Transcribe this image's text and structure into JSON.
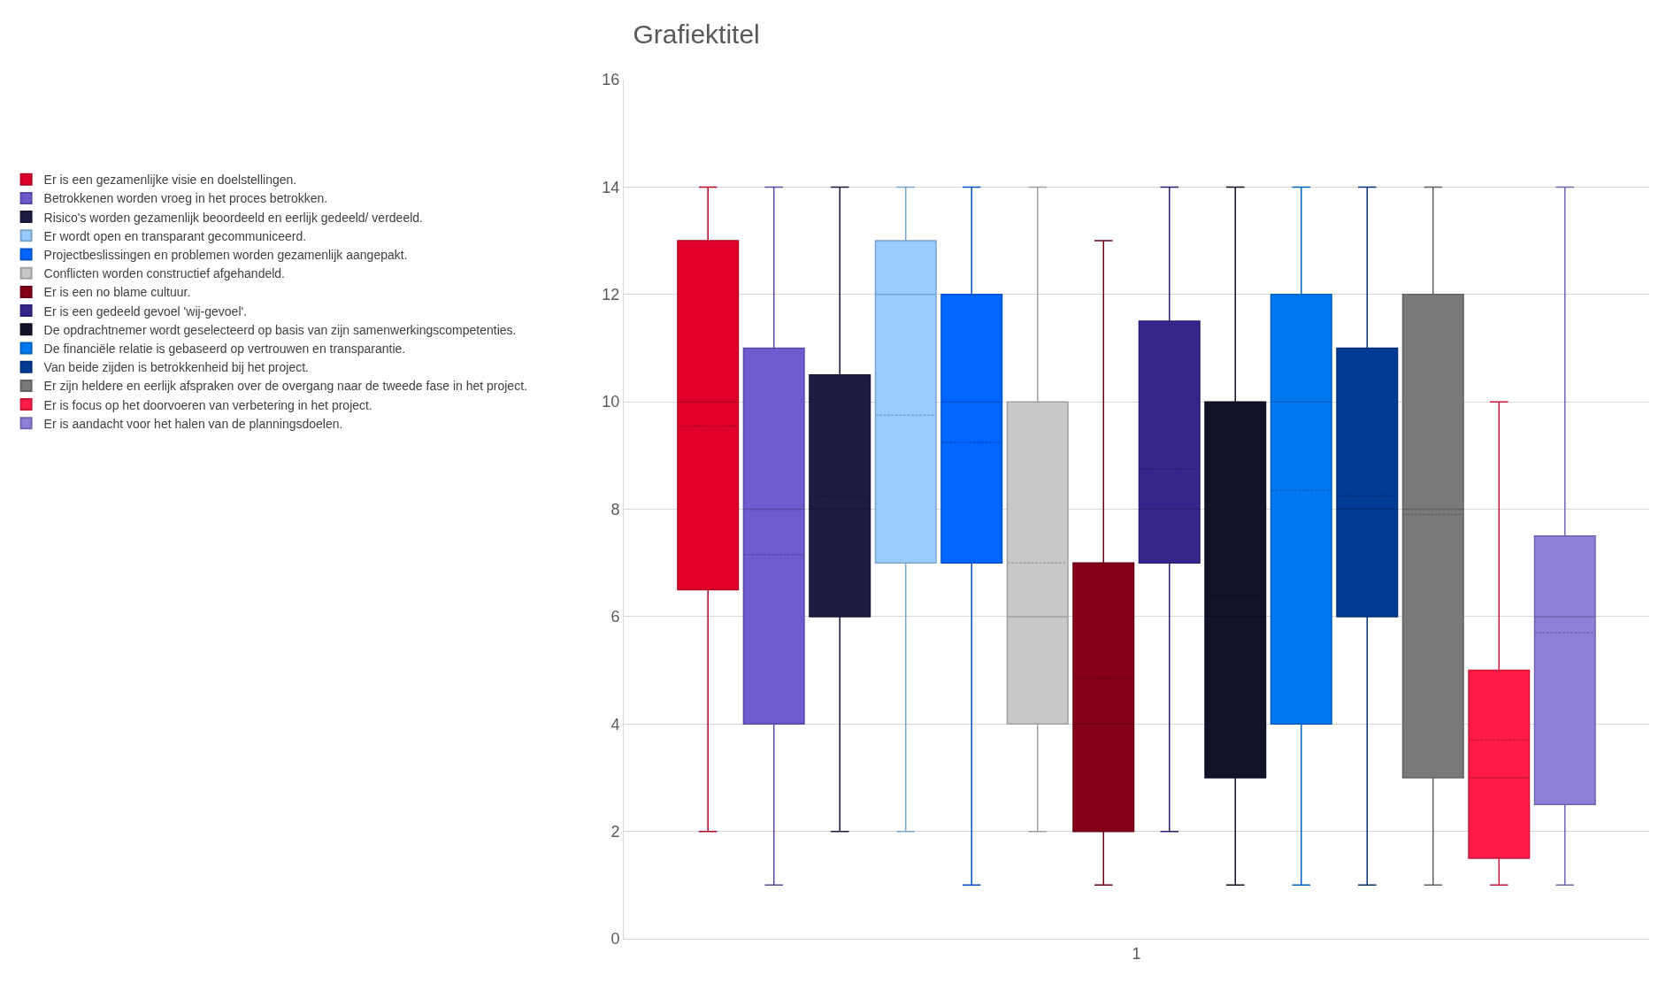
{
  "chart_data": {
    "type": "box",
    "title": "Grafiektitel",
    "categories": [
      "1"
    ],
    "ylim": [
      0,
      16
    ],
    "yticks": [
      0,
      2,
      4,
      6,
      8,
      10,
      12,
      14,
      16
    ],
    "grid": "y",
    "legend": "left",
    "series": [
      {
        "name": "Er is een gezamenlijke visie en doelstellingen.",
        "color": "#e0002a",
        "boxes": [
          {
            "low": 2,
            "q1": 6.5,
            "median": 10,
            "q3": 13,
            "high": 14,
            "mean": 9.55
          }
        ]
      },
      {
        "name": "Betrokkenen worden vroeg in het proces betrokken.",
        "color": "#6f5bcf",
        "boxes": [
          {
            "low": 1,
            "q1": 4,
            "median": 8,
            "q3": 11,
            "high": 14,
            "mean": 7.15
          }
        ]
      },
      {
        "name": "Risico's worden gezamenlijk beoordeeld en eerlijk gedeeld/ verdeeld.",
        "color": "#1d1c43",
        "boxes": [
          {
            "low": 2,
            "q1": 6,
            "median": 8,
            "q3": 10.5,
            "high": 14,
            "mean": 8.25
          }
        ]
      },
      {
        "name": "Er wordt open en transparant gecommuniceerd.",
        "color": "#99ccff",
        "boxes": [
          {
            "low": 2,
            "q1": 7,
            "median": 12,
            "q3": 13,
            "high": 14,
            "mean": 9.75
          }
        ]
      },
      {
        "name": "Projectbeslissingen en problemen worden gezamenlijk aangepakt.",
        "color": "#0066ff",
        "boxes": [
          {
            "low": 1,
            "q1": 7,
            "median": 10,
            "q3": 12,
            "high": 14,
            "mean": 9.25
          }
        ]
      },
      {
        "name": "Conflicten worden constructief afgehandeld.",
        "color": "#c8c8c8",
        "boxes": [
          {
            "low": 2,
            "q1": 4,
            "median": 6,
            "q3": 10,
            "high": 14,
            "mean": 7.0
          }
        ]
      },
      {
        "name": "Er is een no blame cultuur.",
        "color": "#870019",
        "boxes": [
          {
            "low": 1,
            "q1": 2,
            "median": 4,
            "q3": 7,
            "high": 13,
            "mean": 4.85
          }
        ]
      },
      {
        "name": "Er is een gedeeld gevoel 'wij-gevoel'.",
        "color": "#37258c",
        "boxes": [
          {
            "low": 2,
            "q1": 7,
            "median": 8,
            "q3": 11.5,
            "high": 14,
            "mean": 8.75
          }
        ]
      },
      {
        "name": "De opdrachtnemer wordt geselecteerd op basis van zijn samenwerkingscompetenties.",
        "color": "#121228",
        "boxes": [
          {
            "low": 1,
            "q1": 3,
            "median": 6,
            "q3": 10,
            "high": 14,
            "mean": 6.4
          }
        ]
      },
      {
        "name": "De financiële relatie is gebaseerd op vertrouwen en transparantie.",
        "color": "#0078f0",
        "boxes": [
          {
            "low": 1,
            "q1": 4,
            "median": 10,
            "q3": 12,
            "high": 14,
            "mean": 8.35
          }
        ]
      },
      {
        "name": "Van beide zijden is betrokkenheid bij het project.",
        "color": "#003b96",
        "boxes": [
          {
            "low": 1,
            "q1": 6,
            "median": 8,
            "q3": 11,
            "high": 14,
            "mean": 8.25
          }
        ]
      },
      {
        "name": "Er zijn heldere en eerlijk afspraken over de overgang naar de tweede fase in het project.",
        "color": "#7a7a7a",
        "boxes": [
          {
            "low": 1,
            "q1": 3,
            "median": 8,
            "q3": 12,
            "high": 14,
            "mean": 7.9
          }
        ]
      },
      {
        "name": "Er is focus op het doorvoeren van verbetering in het project.",
        "color": "#ff1a47",
        "boxes": [
          {
            "low": 1,
            "q1": 1.5,
            "median": 3,
            "q3": 5,
            "high": 10,
            "mean": 3.7
          }
        ]
      },
      {
        "name": "Er is aandacht voor het halen van de planningsdoelen.",
        "color": "#8c80d9",
        "boxes": [
          {
            "low": 1,
            "q1": 2.5,
            "median": 6,
            "q3": 7.5,
            "high": 14,
            "mean": 5.7
          }
        ]
      }
    ]
  }
}
